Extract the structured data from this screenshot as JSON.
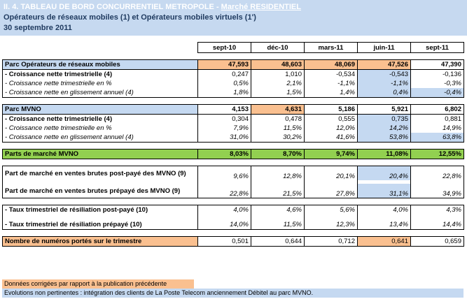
{
  "header": {
    "line1_prefix": "II. 4. TABLEAU DE BORD CONCURRENTIEL METROPOLE - ",
    "line1_market": "Marché RESIDENTIEL",
    "line2": "Opérateurs de réseaux mobiles (1) et Opérateurs mobiles virtuels (1')",
    "line3": "30 septembre 2011"
  },
  "columns": [
    "sept-10",
    "déc-10",
    "mars-11",
    "juin-11",
    "sept-11"
  ],
  "mno": {
    "label": "Parc Opérateurs de réseaux mobiles",
    "values": [
      "47,593",
      "48,603",
      "48,069",
      "47,526",
      "47,390"
    ],
    "rows": [
      {
        "label": "- Croissance nette trimestrielle (4)",
        "values": [
          "0,247",
          "1,010",
          "-0,534",
          "-0,543",
          "-0,136"
        ]
      },
      {
        "label": "- Croissance nette trimestrielle en %",
        "values": [
          "0,5%",
          "2,1%",
          "-1,1%",
          "-1,1%",
          "-0,3%"
        ]
      },
      {
        "label": "- Croissance nette en glissement annuel (4)",
        "values": [
          "1,8%",
          "1,5%",
          "1,4%",
          "0,4%",
          "-0,4%"
        ]
      }
    ]
  },
  "mvno": {
    "label": "Parc MVNO",
    "values": [
      "4,153",
      "4,631",
      "5,186",
      "5,921",
      "6,802"
    ],
    "rows": [
      {
        "label": "- Croissance nette trimestrielle (4)",
        "values": [
          "0,304",
          "0,478",
          "0,555",
          "0,735",
          "0,881"
        ]
      },
      {
        "label": "- Croissance nette trimestrielle en %",
        "values": [
          "7,9%",
          "11,5%",
          "12,0%",
          "14,2%",
          "14,9%"
        ]
      },
      {
        "label": "- Croissance nette en glissement annuel (4)",
        "values": [
          "31,0%",
          "30,2%",
          "41,6%",
          "53,8%",
          "63,8%"
        ]
      }
    ]
  },
  "share": {
    "label": "Parts de marché MVNO",
    "values": [
      "8,03%",
      "8,70%",
      "9,74%",
      "11,08%",
      "12,55%"
    ]
  },
  "gross": {
    "rows": [
      {
        "label": "Part de marché en ventes brutes post-payé des MVNO (9)",
        "values": [
          "9,6%",
          "12,8%",
          "20,1%",
          "20,4%",
          "22,8%"
        ]
      },
      {
        "label": "Part de marché en ventes brutes prépayé des MVNO (9)",
        "values": [
          "22,8%",
          "21,5%",
          "27,8%",
          "31,1%",
          "34,9%"
        ]
      }
    ]
  },
  "churn": {
    "rows": [
      {
        "label": "- Taux trimestriel de résiliation post-payé (10)",
        "values": [
          "4,0%",
          "4,6%",
          "5,6%",
          "4,0%",
          "4,3%"
        ]
      },
      {
        "label": "- Taux trimestriel de résiliation prépayé (10)",
        "values": [
          "14,0%",
          "11,5%",
          "12,3%",
          "13,4%",
          "14,4%"
        ]
      }
    ]
  },
  "ported": {
    "label": "Nombre de numéros portés sur le trimestre",
    "values": [
      "0,501",
      "0,644",
      "0,712",
      "0,641",
      "0,659"
    ]
  },
  "footnotes": {
    "corrected": "Données corrigées par rapport à la publication précédente",
    "evolutions": "Evolutions non pertinentes : intégration des clients de La Poste Telecom anciennement Débitel au parc MVNO."
  },
  "colors": {
    "corrected": "#fac090",
    "not_relevant": "#c5d9f1",
    "share_row": "#92d050",
    "header_band": "#c6d9f0"
  }
}
